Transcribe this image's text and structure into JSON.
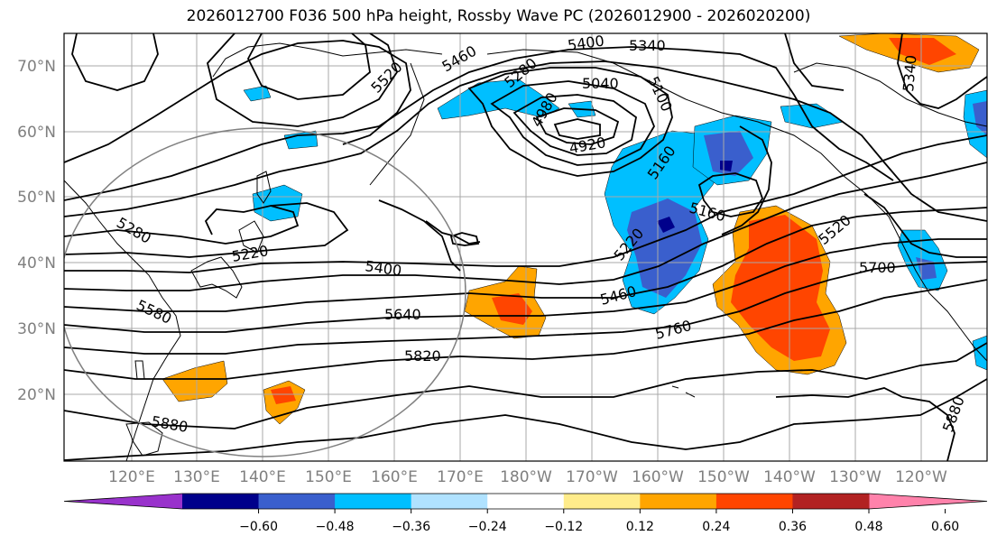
{
  "title": "2026012700 F036 500 hPa height, Rossby Wave PC (2026012900 - 2026020200)",
  "map": {
    "lat_labels": [
      "70°N",
      "60°N",
      "50°N",
      "40°N",
      "30°N",
      "20°N"
    ],
    "lon_labels": [
      "120°E",
      "130°E",
      "140°E",
      "150°E",
      "160°E",
      "170°E",
      "180°W",
      "170°W",
      "160°W",
      "150°W",
      "140°W",
      "130°W",
      "120°W"
    ],
    "contour_labels": [
      "5520",
      "5460",
      "5400",
      "5340",
      "5280",
      "5040",
      "5100",
      "4980",
      "4920",
      "5160",
      "5160",
      "5220",
      "5220",
      "5280",
      "5400",
      "5460",
      "5520",
      "5580",
      "5640",
      "5700",
      "5760",
      "5820",
      "5880",
      "5880",
      "5340"
    ]
  },
  "colorbar": {
    "ticks": [
      "−0.60",
      "−0.48",
      "−0.36",
      "−0.24",
      "−0.12",
      "0.12",
      "0.24",
      "0.36",
      "0.48",
      "0.60"
    ],
    "colors": [
      "#9932cc",
      "#00008b",
      "#3a5fcd",
      "#00bfff",
      "#b0e2ff",
      "#ffffff",
      "#ffec8b",
      "#ffa500",
      "#ff4500",
      "#b22222",
      "#ff82ab"
    ]
  }
}
